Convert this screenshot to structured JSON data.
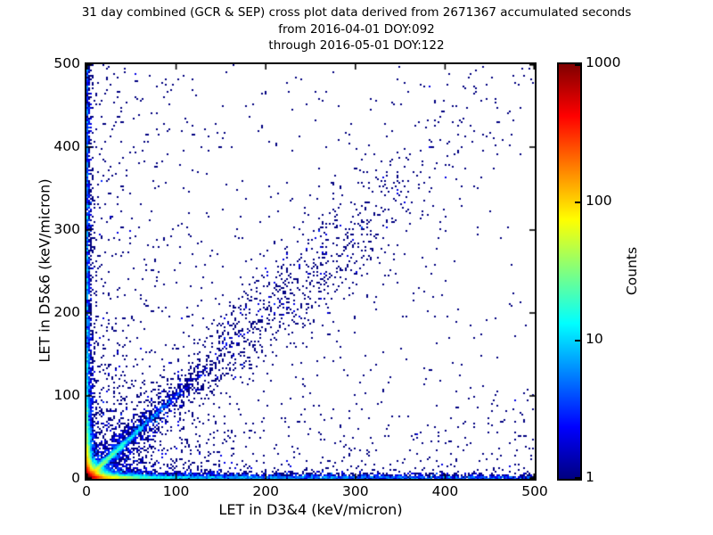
{
  "figure": {
    "title_line1": "31 day combined (GCR & SEP) cross plot data derived from 2671367 accumulated seconds",
    "title_line2": "from 2016-04-01 DOY:092",
    "title_line3": "through 2016-05-01 DOY:122",
    "background": "#ffffff",
    "frame_color": "#000000"
  },
  "chart_data": {
    "type": "heatmap",
    "subtype": "2d-histogram-cross-plot",
    "xlabel": "LET in D3&4 (keV/micron)",
    "ylabel": "LET in D5&6 (keV/micron)",
    "xlim": [
      0,
      500
    ],
    "ylim": [
      0,
      500
    ],
    "x_ticks": [
      0,
      100,
      200,
      300,
      400,
      500
    ],
    "y_ticks": [
      0,
      100,
      200,
      300,
      400,
      500
    ],
    "grid": "off",
    "accumulated_seconds": 2671367,
    "colorbar": {
      "label": "Counts",
      "scale": "log",
      "min": 1,
      "max": 1000,
      "ticks": [
        1,
        10,
        100,
        1000
      ],
      "position": "right",
      "colormap": "jet",
      "colormap_stops": [
        [
          0.0,
          "#000080"
        ],
        [
          0.125,
          "#0000ff"
        ],
        [
          0.375,
          "#00ffff"
        ],
        [
          0.625,
          "#ffff00"
        ],
        [
          0.875,
          "#ff0000"
        ],
        [
          1.0,
          "#800000"
        ]
      ]
    },
    "bin_size_px": 2,
    "seed": 20160401,
    "distribution_components": [
      {
        "name": "origin-hotspot-core",
        "n": 12000,
        "x": {
          "dist": "exp",
          "scale": 5
        },
        "y": {
          "dist": "exp",
          "scale": 5
        }
      },
      {
        "name": "bottom-edge-hot-band",
        "n": 7000,
        "x": {
          "dist": "exp",
          "scale": 18
        },
        "y": {
          "dist": "exp",
          "scale": 2.2
        }
      },
      {
        "name": "left-edge-hot-band",
        "n": 4000,
        "x": {
          "dist": "exp",
          "scale": 2.2
        },
        "y": {
          "dist": "exp",
          "scale": 20
        }
      },
      {
        "name": "bottom-edge-long-band",
        "n": 2600,
        "x": {
          "dist": "exp",
          "scale": 170
        },
        "y": {
          "dist": "exp",
          "scale": 2.2
        }
      },
      {
        "name": "bottom-edge-uniform-band",
        "n": 1400,
        "x": {
          "dist": "uniform",
          "min": 0,
          "max": 500
        },
        "y": {
          "dist": "exp",
          "scale": 2.0
        }
      },
      {
        "name": "left-edge-long-band",
        "n": 1600,
        "x": {
          "dist": "exp",
          "scale": 1.8
        },
        "y": {
          "dist": "exp",
          "scale": 150
        }
      },
      {
        "name": "left-edge-uniform-band",
        "n": 1000,
        "x": {
          "dist": "exp",
          "scale": 1.8
        },
        "y": {
          "dist": "uniform",
          "min": 0,
          "max": 500
        }
      },
      {
        "name": "diagonal-track-bright",
        "n": 2600,
        "diag": {
          "t": {
            "dist": "exp",
            "scale": 30
          },
          "sigma0": 1.6,
          "sigmaSlope": 0
        }
      },
      {
        "name": "diagonal-track-diffuse",
        "n": 1500,
        "diag": {
          "t": {
            "dist": "exp",
            "scale": 100
          },
          "sigma0": 4,
          "sigmaSlope": 0.1
        }
      },
      {
        "name": "diagonal-mid-cluster",
        "n": 430,
        "diag": {
          "t": {
            "dist": "normal",
            "mean": 245,
            "sd": 55
          },
          "sigma0": 24,
          "sigmaSlope": 0
        }
      },
      {
        "name": "diagonal-far-sparse",
        "n": 150,
        "diag": {
          "t": {
            "dist": "uniform",
            "min": 280,
            "max": 500
          },
          "sigma0": 40,
          "sigmaSlope": 0
        }
      },
      {
        "name": "origin-halo",
        "n": 900,
        "x": {
          "dist": "exp",
          "scale": 45
        },
        "y": {
          "dist": "exp",
          "scale": 45
        }
      },
      {
        "name": "left-half-scatter",
        "n": 450,
        "x": {
          "dist": "exp",
          "scale": 60
        },
        "y": {
          "dist": "uniform",
          "min": 0,
          "max": 500
        }
      },
      {
        "name": "bottom-half-scatter",
        "n": 450,
        "x": {
          "dist": "uniform",
          "min": 0,
          "max": 500
        },
        "y": {
          "dist": "exp",
          "scale": 60
        }
      },
      {
        "name": "uniform-sparse-background",
        "n": 260,
        "x": {
          "dist": "uniform",
          "min": 0,
          "max": 500
        },
        "y": {
          "dist": "uniform",
          "min": 0,
          "max": 500
        }
      }
    ]
  }
}
